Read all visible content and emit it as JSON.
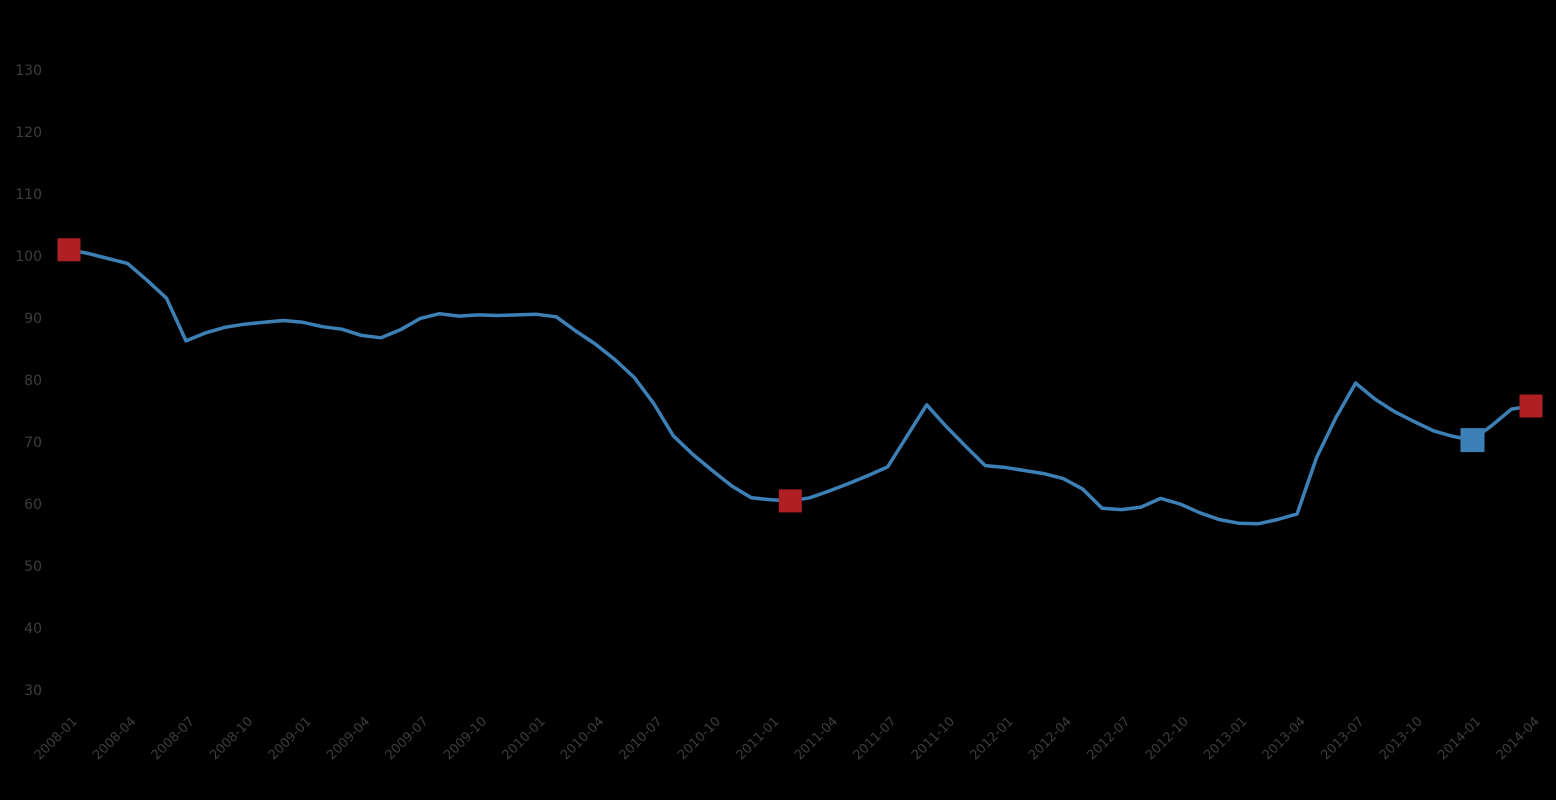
{
  "page": {
    "background_color": "#000000",
    "text_color": "#3d3d3d"
  },
  "chart_data": {
    "type": "line",
    "title": "",
    "xlabel": "",
    "ylabel": "",
    "grid": false,
    "legend_position": "none",
    "ylim": [
      30,
      130
    ],
    "y_ticks": [
      130,
      120,
      110,
      100,
      90,
      80,
      70,
      60,
      50,
      40,
      30
    ],
    "x": [
      "2008-01",
      "2008-02",
      "2008-03",
      "2008-04",
      "2008-05",
      "2008-06",
      "2008-07",
      "2008-08",
      "2008-09",
      "2008-10",
      "2008-11",
      "2008-12",
      "2009-01",
      "2009-02",
      "2009-03",
      "2009-04",
      "2009-05",
      "2009-06",
      "2009-07",
      "2009-08",
      "2009-09",
      "2009-10",
      "2009-11",
      "2009-12",
      "2010-01",
      "2010-02",
      "2010-03",
      "2010-04",
      "2010-05",
      "2010-06",
      "2010-07",
      "2010-08",
      "2010-09",
      "2010-10",
      "2010-11",
      "2010-12",
      "2011-01",
      "2011-02",
      "2011-03",
      "2011-04",
      "2011-05",
      "2011-06",
      "2011-07",
      "2011-08",
      "2011-09",
      "2011-10",
      "2011-11",
      "2011-12",
      "2012-01",
      "2012-02",
      "2012-03",
      "2012-04",
      "2012-05",
      "2012-06",
      "2012-07",
      "2012-08",
      "2012-09",
      "2012-10",
      "2012-11",
      "2012-12",
      "2013-01",
      "2013-02",
      "2013-03",
      "2013-04",
      "2013-05",
      "2013-06",
      "2013-07",
      "2013-08",
      "2013-09",
      "2013-10",
      "2013-11",
      "2013-12",
      "2014-01",
      "2014-02",
      "2014-03",
      "2014-04"
    ],
    "x_tick_every": 3,
    "series": [
      {
        "name": "index-line",
        "color": "#3d80b6",
        "values": [
          101.0,
          100.4,
          99.6,
          98.8,
          96.1,
          93.2,
          86.3,
          87.6,
          88.5,
          89.0,
          89.3,
          89.6,
          89.3,
          88.6,
          88.2,
          87.2,
          86.8,
          88.1,
          89.9,
          90.7,
          90.3,
          90.5,
          90.4,
          90.5,
          90.6,
          90.2,
          87.9,
          85.8,
          83.3,
          80.4,
          76.2,
          71.0,
          68.0,
          65.4,
          62.9,
          61.0,
          60.7,
          60.5,
          61.0,
          62.1,
          63.3,
          64.6,
          66.0,
          71.0,
          76.0,
          72.5,
          69.3,
          66.2,
          65.9,
          65.4,
          64.9,
          64.1,
          62.4,
          59.3,
          59.1,
          59.5,
          60.9,
          60.0,
          58.6,
          57.5,
          56.9,
          56.8,
          57.5,
          58.4,
          67.5,
          74.0,
          79.5,
          76.9,
          74.9,
          73.3,
          71.8,
          70.9,
          70.3,
          72.7,
          75.3,
          75.8
        ]
      }
    ],
    "markers": [
      {
        "name": "event-marker-start",
        "index": 0,
        "shape": "square",
        "color": "#b01f24",
        "size": 23
      },
      {
        "name": "event-marker-trough",
        "index": 37,
        "shape": "square",
        "color": "#b01f24",
        "size": 23
      },
      {
        "name": "latest-marker",
        "index": 72,
        "shape": "square",
        "color": "#3c80b8",
        "size": 24
      },
      {
        "name": "event-marker-end",
        "index": 75,
        "shape": "square",
        "color": "#b01f24",
        "size": 23
      }
    ],
    "axis_text_color": "#3d3d3d",
    "background_color": "#000000",
    "x_tick_rotation_deg": -45
  }
}
